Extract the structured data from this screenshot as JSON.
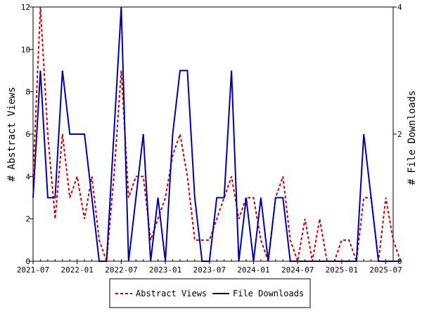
{
  "chart_data": {
    "type": "line",
    "title": "",
    "xlabel": "",
    "ylabel_left": "# Abstract Views",
    "ylabel_right": "# File Downloads",
    "x_tick_labels": [
      "2021-07",
      "2022-01",
      "2022-07",
      "2023-01",
      "2023-07",
      "2024-01",
      "2024-07",
      "2025-01",
      "2025-07"
    ],
    "x_range": [
      "2021-07",
      "2025-08"
    ],
    "ylim_left": [
      0,
      12
    ],
    "y_ticks_left": [
      0,
      2,
      4,
      6,
      8,
      10,
      12
    ],
    "ylim_right": [
      0,
      4
    ],
    "y_ticks_right": [
      0,
      2,
      4
    ],
    "grid": false,
    "legend_position": "bottom-center",
    "series": [
      {
        "name": "Abstract Views",
        "axis": "left",
        "color": "#cc0000",
        "style": "dashed",
        "points": [
          [
            "2021-07",
            4
          ],
          [
            "2021-08",
            12
          ],
          [
            "2021-09",
            6
          ],
          [
            "2021-10",
            2
          ],
          [
            "2021-11",
            6
          ],
          [
            "2021-12",
            3
          ],
          [
            "2022-01",
            4
          ],
          [
            "2022-02",
            2
          ],
          [
            "2022-03",
            4
          ],
          [
            "2022-04",
            1
          ],
          [
            "2022-05",
            0
          ],
          [
            "2022-06",
            4
          ],
          [
            "2022-07",
            9
          ],
          [
            "2022-08",
            3
          ],
          [
            "2022-09",
            4
          ],
          [
            "2022-10",
            4
          ],
          [
            "2022-11",
            1
          ],
          [
            "2022-12",
            2
          ],
          [
            "2023-01",
            3
          ],
          [
            "2023-02",
            5
          ],
          [
            "2023-03",
            6
          ],
          [
            "2023-04",
            4
          ],
          [
            "2023-05",
            1
          ],
          [
            "2023-06",
            1
          ],
          [
            "2023-07",
            1
          ],
          [
            "2023-08",
            2
          ],
          [
            "2023-09",
            3
          ],
          [
            "2023-10",
            4
          ],
          [
            "2023-11",
            2
          ],
          [
            "2023-12",
            3
          ],
          [
            "2024-01",
            3
          ],
          [
            "2024-02",
            1
          ],
          [
            "2024-03",
            0
          ],
          [
            "2024-04",
            3
          ],
          [
            "2024-05",
            4
          ],
          [
            "2024-06",
            1
          ],
          [
            "2024-07",
            0
          ],
          [
            "2024-08",
            2
          ],
          [
            "2024-09",
            0
          ],
          [
            "2024-10",
            2
          ],
          [
            "2024-11",
            0
          ],
          [
            "2024-12",
            0
          ],
          [
            "2025-01",
            1
          ],
          [
            "2025-02",
            1
          ],
          [
            "2025-03",
            0
          ],
          [
            "2025-04",
            3
          ],
          [
            "2025-05",
            3
          ],
          [
            "2025-06",
            0
          ],
          [
            "2025-07",
            3
          ],
          [
            "2025-08",
            1
          ],
          [
            "2025-09",
            0
          ]
        ]
      },
      {
        "name": "File Downloads",
        "axis": "right",
        "color": "#0000aa",
        "style": "solid",
        "points": [
          [
            "2021-07",
            1
          ],
          [
            "2021-08",
            3
          ],
          [
            "2021-09",
            1
          ],
          [
            "2021-10",
            1
          ],
          [
            "2021-11",
            3
          ],
          [
            "2021-12",
            2
          ],
          [
            "2022-01",
            2
          ],
          [
            "2022-02",
            2
          ],
          [
            "2022-03",
            1
          ],
          [
            "2022-04",
            0
          ],
          [
            "2022-05",
            0
          ],
          [
            "2022-06",
            2
          ],
          [
            "2022-07",
            4
          ],
          [
            "2022-08",
            0
          ],
          [
            "2022-09",
            1
          ],
          [
            "2022-10",
            2
          ],
          [
            "2022-11",
            0
          ],
          [
            "2022-12",
            1
          ],
          [
            "2023-01",
            0
          ],
          [
            "2023-02",
            2
          ],
          [
            "2023-03",
            3
          ],
          [
            "2023-04",
            3
          ],
          [
            "2023-05",
            1
          ],
          [
            "2023-06",
            0
          ],
          [
            "2023-07",
            0
          ],
          [
            "2023-08",
            1
          ],
          [
            "2023-09",
            1
          ],
          [
            "2023-10",
            3
          ],
          [
            "2023-11",
            0
          ],
          [
            "2023-12",
            1
          ],
          [
            "2024-01",
            0
          ],
          [
            "2024-02",
            1
          ],
          [
            "2024-03",
            0
          ],
          [
            "2024-04",
            1
          ],
          [
            "2024-05",
            1
          ],
          [
            "2024-06",
            0
          ],
          [
            "2024-07",
            0
          ],
          [
            "2024-08",
            0
          ],
          [
            "2024-09",
            0
          ],
          [
            "2024-10",
            0
          ],
          [
            "2024-11",
            0
          ],
          [
            "2024-12",
            0
          ],
          [
            "2025-01",
            0
          ],
          [
            "2025-02",
            0
          ],
          [
            "2025-03",
            0
          ],
          [
            "2025-04",
            2
          ],
          [
            "2025-05",
            1
          ],
          [
            "2025-06",
            0
          ],
          [
            "2025-07",
            0
          ],
          [
            "2025-08",
            0
          ],
          [
            "2025-09",
            0
          ]
        ]
      }
    ]
  }
}
